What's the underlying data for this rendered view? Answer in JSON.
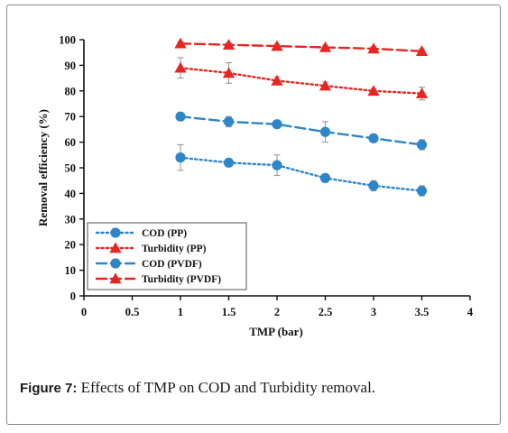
{
  "figure": {
    "caption_label": "Figure 7:",
    "caption_text": " Effects of TMP on COD and Turbidity removal."
  },
  "colors": {
    "blue": "#2e86c9",
    "red": "#e52622",
    "axis": "#111111",
    "frame": "#8a8a8a"
  },
  "chart_data": {
    "type": "line",
    "xlabel": "TMP (bar)",
    "ylabel": "Removal efficiency (%)",
    "xlim": [
      0,
      4
    ],
    "ylim": [
      0,
      100
    ],
    "xticks": [
      0,
      0.5,
      1,
      1.5,
      2,
      2.5,
      3,
      3.5,
      4
    ],
    "xtick_labels": [
      "0",
      "0.5",
      "1",
      "1.5",
      "2",
      "2.5",
      "3",
      "3.5",
      "4"
    ],
    "yticks": [
      0,
      10,
      20,
      30,
      40,
      50,
      60,
      70,
      80,
      90,
      100
    ],
    "ytick_labels": [
      "0",
      "10",
      "20",
      "30",
      "40",
      "50",
      "60",
      "70",
      "80",
      "90",
      "100"
    ],
    "grid": false,
    "legend_position": "lower-left",
    "x": [
      1,
      1.5,
      2,
      2.5,
      3,
      3.5
    ],
    "series": [
      {
        "name": "COD (PP)",
        "values": [
          54,
          52,
          51,
          46,
          43,
          41
        ],
        "errors": [
          5,
          1.5,
          4,
          1.5,
          2,
          2
        ],
        "color": "blue",
        "marker": "circle",
        "line_style": "dotted"
      },
      {
        "name": "Turbidity (PP)",
        "values": [
          89,
          87,
          84,
          82,
          80,
          79
        ],
        "errors": [
          4,
          4,
          1.5,
          1.5,
          1,
          2.5
        ],
        "color": "red",
        "marker": "triangle",
        "line_style": "dotted"
      },
      {
        "name": "COD (PVDF)",
        "values": [
          70,
          68,
          67,
          64,
          61.5,
          59
        ],
        "errors": [
          1.5,
          2,
          1.5,
          4,
          1.5,
          2
        ],
        "color": "blue",
        "marker": "circle",
        "line_style": "dashed"
      },
      {
        "name": "Turbidity (PVDF)",
        "values": [
          98.5,
          98,
          97.5,
          97,
          96.5,
          95.5
        ],
        "errors": [
          0.8,
          0.8,
          0.8,
          0.8,
          0.8,
          1
        ],
        "color": "red",
        "marker": "triangle",
        "line_style": "dashed"
      }
    ]
  }
}
